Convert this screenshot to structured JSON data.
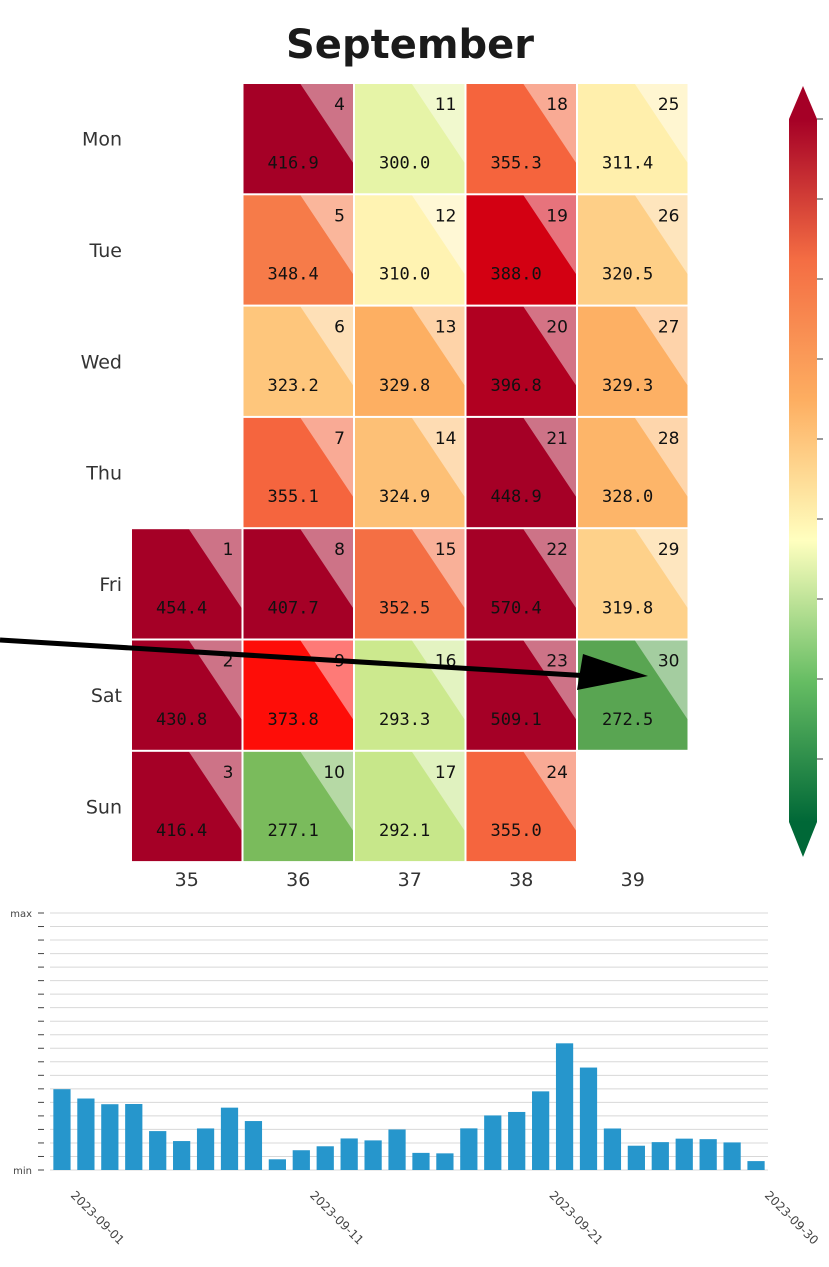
{
  "chart_data": [
    {
      "type": "heatmap",
      "title": "September",
      "rows": [
        "Mon",
        "Tue",
        "Wed",
        "Thu",
        "Fri",
        "Sat",
        "Sun"
      ],
      "columns": [
        "35",
        "36",
        "37",
        "38",
        "39"
      ],
      "cells": [
        {
          "day": "1",
          "value": "454.4",
          "row": 4,
          "col": 0
        },
        {
          "day": "2",
          "value": "430.8",
          "row": 5,
          "col": 0
        },
        {
          "day": "3",
          "value": "416.4",
          "row": 6,
          "col": 0
        },
        {
          "day": "4",
          "value": "416.9",
          "row": 0,
          "col": 1
        },
        {
          "day": "5",
          "value": "348.4",
          "row": 1,
          "col": 1
        },
        {
          "day": "6",
          "value": "323.2",
          "row": 2,
          "col": 1
        },
        {
          "day": "7",
          "value": "355.1",
          "row": 3,
          "col": 1
        },
        {
          "day": "8",
          "value": "407.7",
          "row": 4,
          "col": 1
        },
        {
          "day": "9",
          "value": "373.8",
          "row": 5,
          "col": 1
        },
        {
          "day": "10",
          "value": "277.1",
          "row": 6,
          "col": 1
        },
        {
          "day": "11",
          "value": "300.0",
          "row": 0,
          "col": 2
        },
        {
          "day": "12",
          "value": "310.0",
          "row": 1,
          "col": 2
        },
        {
          "day": "13",
          "value": "329.8",
          "row": 2,
          "col": 2
        },
        {
          "day": "14",
          "value": "324.9",
          "row": 3,
          "col": 2
        },
        {
          "day": "15",
          "value": "352.5",
          "row": 4,
          "col": 2
        },
        {
          "day": "16",
          "value": "293.3",
          "row": 5,
          "col": 2
        },
        {
          "day": "17",
          "value": "292.1",
          "row": 6,
          "col": 2
        },
        {
          "day": "18",
          "value": "355.3",
          "row": 0,
          "col": 3
        },
        {
          "day": "19",
          "value": "388.0",
          "row": 1,
          "col": 3
        },
        {
          "day": "20",
          "value": "396.8",
          "row": 2,
          "col": 3
        },
        {
          "day": "21",
          "value": "448.9",
          "row": 3,
          "col": 3
        },
        {
          "day": "22",
          "value": "570.4",
          "row": 4,
          "col": 3
        },
        {
          "day": "23",
          "value": "509.1",
          "row": 5,
          "col": 3
        },
        {
          "day": "24",
          "value": "355.0",
          "row": 6,
          "col": 3
        },
        {
          "day": "25",
          "value": "311.4",
          "row": 0,
          "col": 4
        },
        {
          "day": "26",
          "value": "320.5",
          "row": 1,
          "col": 4
        },
        {
          "day": "27",
          "value": "329.3",
          "row": 2,
          "col": 4
        },
        {
          "day": "28",
          "value": "328.0",
          "row": 3,
          "col": 4
        },
        {
          "day": "29",
          "value": "319.8",
          "row": 4,
          "col": 4
        },
        {
          "day": "30",
          "value": "272.5",
          "row": 5,
          "col": 4
        }
      ],
      "colorscale": [
        "#006837",
        "#a6d96a",
        "#ffffbf",
        "#fdae61",
        "#f46d43",
        "#ff0000",
        "#a50026"
      ],
      "clip_range": [
        260,
        400
      ]
    },
    {
      "type": "bar",
      "color": "#2696cc",
      "ylabels": [
        "min",
        "max"
      ],
      "xlabels": [
        "2023-09-01",
        "2023-09-11",
        "2023-09-21",
        "2023-09-30"
      ],
      "values": [
        454.4,
        430.8,
        416.4,
        416.9,
        348.4,
        323.2,
        355.1,
        407.7,
        373.8,
        277.1,
        300.0,
        310.0,
        329.8,
        324.9,
        352.5,
        293.3,
        292.1,
        355.3,
        388.0,
        396.8,
        448.9,
        570.4,
        509.1,
        355.0,
        311.4,
        320.5,
        329.3,
        328.0,
        319.8,
        272.5
      ]
    }
  ]
}
